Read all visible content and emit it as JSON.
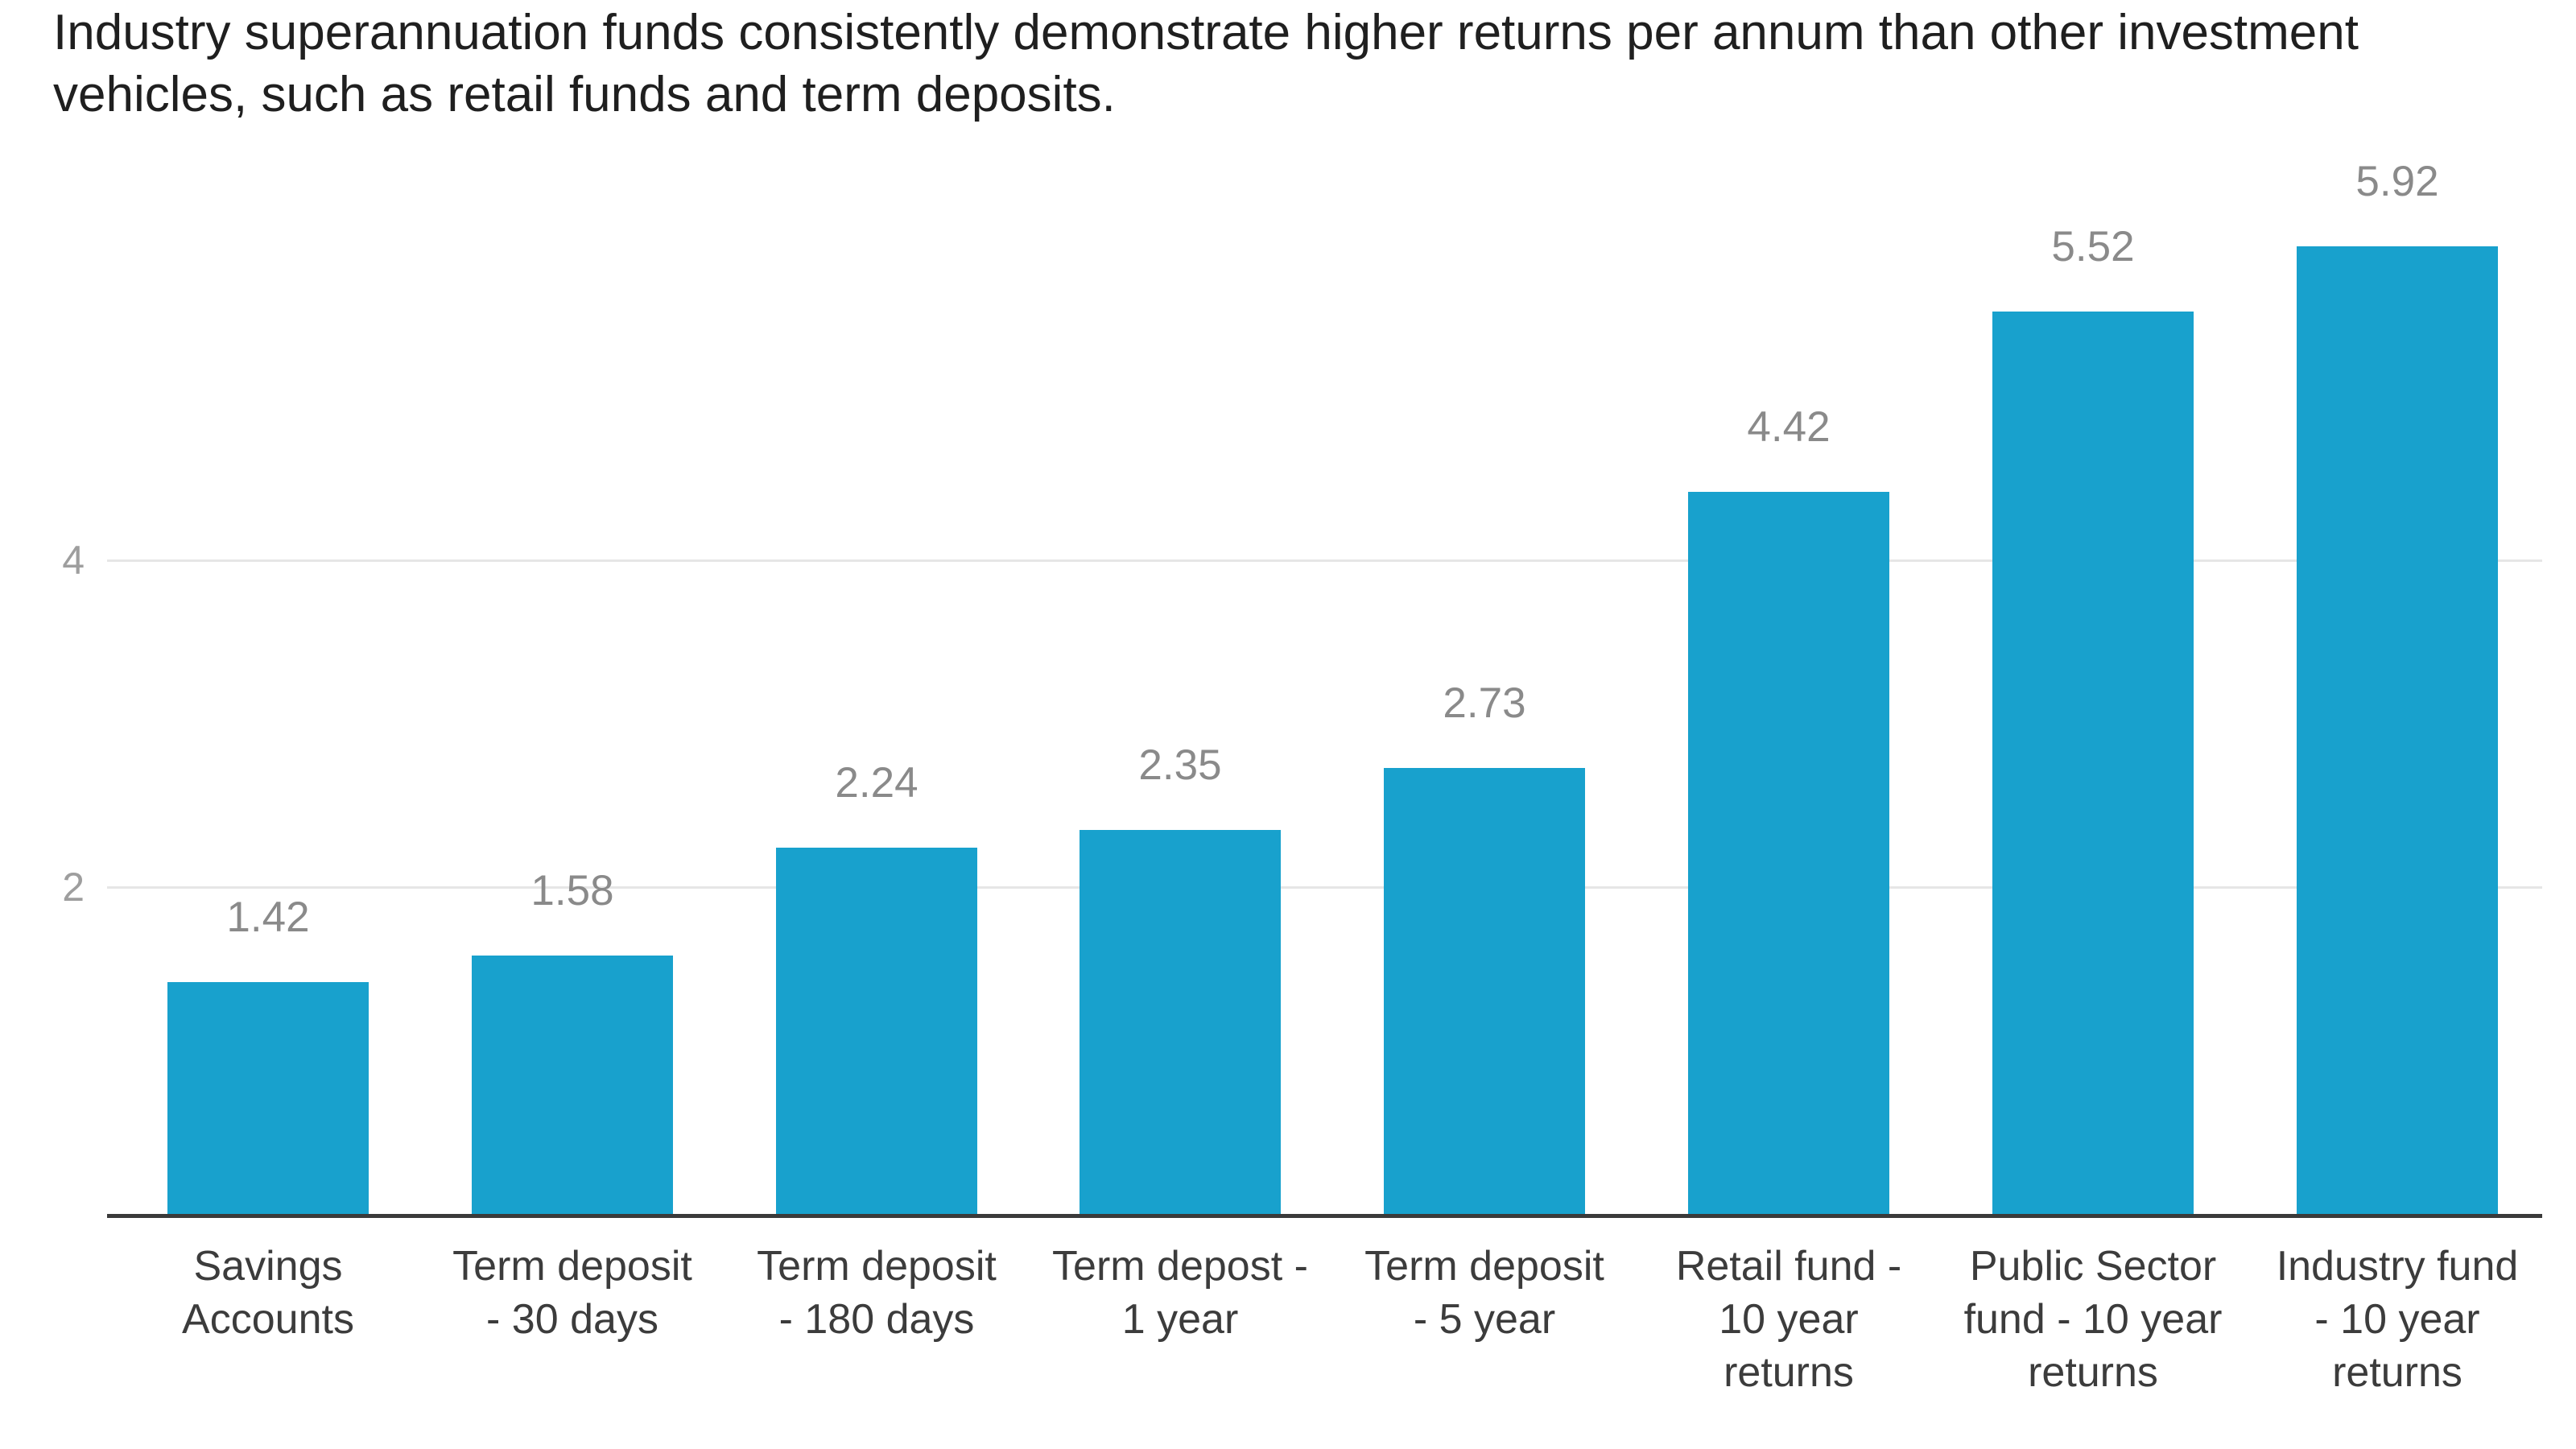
{
  "title": {
    "text": "Industry superannuation funds consistently demonstrate higher returns per annum than other investment vehicles, such as retail funds and term deposits.",
    "lines": [
      "Industry superannuation funds consistently demonstrate higher returns per annum than other investment",
      "vehicles, such as retail funds and term deposits."
    ]
  },
  "chart_data": {
    "type": "bar",
    "title": "Industry superannuation funds consistently demonstrate higher returns per annum than other investment vehicles, such as retail funds and term deposits.",
    "categories": [
      "Savings Accounts",
      "Term deposit - 30 days",
      "Term deposit - 180 days",
      "Term depost - 1 year",
      "Term deposit - 5 year",
      "Retail fund - 10 year returns",
      "Public Sector fund - 10 year returns",
      "Industry fund - 10 year returns"
    ],
    "category_lines": [
      [
        "Savings",
        "Accounts"
      ],
      [
        "Term deposit",
        "- 30 days"
      ],
      [
        "Term deposit",
        "- 180 days"
      ],
      [
        "Term depost -",
        "1 year"
      ],
      [
        "Term deposit",
        "- 5 year"
      ],
      [
        "Retail fund -",
        "10 year",
        "returns"
      ],
      [
        "Public Sector",
        "fund - 10 year",
        "returns"
      ],
      [
        "Industry fund",
        "- 10 year",
        "returns"
      ]
    ],
    "values": [
      1.42,
      1.58,
      2.24,
      2.35,
      2.73,
      4.42,
      5.52,
      5.92
    ],
    "value_labels": [
      "1.42",
      "1.58",
      "2.24",
      "2.35",
      "2.73",
      "4.42",
      "5.52",
      "5.92"
    ],
    "xlabel": "",
    "ylabel": "",
    "y_ticks": [
      2,
      4
    ],
    "ylim": [
      0,
      6
    ],
    "grid": "horizontal-only",
    "legend": "none",
    "bar_color": "#18a1cd"
  },
  "colors": {
    "bar": "#18a1cd",
    "title_text": "#1f1f1f",
    "value_label": "#8a8a8a",
    "category_label": "#3c3c3c",
    "tick_label": "#9e9e9e",
    "gridline": "#e6e6e6",
    "axis_line": "#3a3a3a",
    "background": "#ffffff"
  }
}
